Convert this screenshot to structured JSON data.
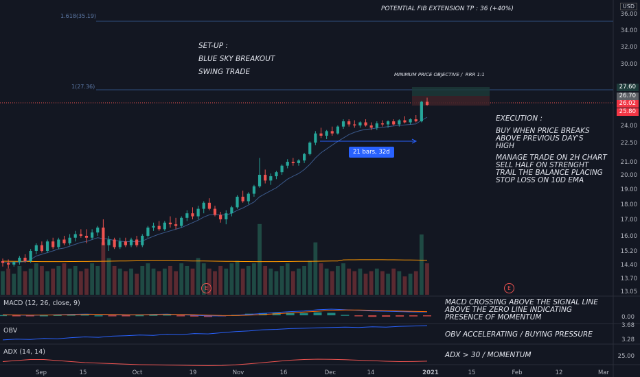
{
  "annotations": {
    "fib_target": "POTENTIAL FIB EXTENSION TP : 36 (+40%)",
    "setup_title": "SET-UP :",
    "setup_type": "BLUE SKY BREAKOUT",
    "setup_style": "SWING TRADE",
    "min_objective": "MINIMUM PRICE OBJECTIVE /  RRR 1:1",
    "execution_title": "EXECUTION :",
    "execution_buy": "BUY WHEN PRICE BREAKS\nABOVE PREVIOUS DAY'S\nHIGH",
    "execution_manage": "MANAGE TRADE ON 2H CHART\nSELL HALF ON STRENGHT\nTRAIL THE BALANCE PLACING\nSTOP LOSS ON 10D EMA",
    "macd_note": "MACD CROSSING ABOVE THE SIGNAL LINE\nABOVE THE ZERO LINE INDICATING\nPRESENCE OF MOMENTUM",
    "obv_note": "OBV ACCELERATING / BUYING PRESSURE",
    "adx_note": "ADX > 30 / MOMENTUM",
    "measure_label": "21 bars, 32d",
    "fib_1618": "1.618(35.19)",
    "fib_1": "1(27.36)",
    "earnings_marker": "E",
    "currency": "USD"
  },
  "panes": {
    "macd_label": "MACD (12, 26, close, 9)",
    "obv_label": "OBV",
    "adx_label": "ADX (14, 14)",
    "macd_axis": "0.00",
    "obv_axis": [
      "3.68",
      "3.28"
    ],
    "adx_axis": "25.00"
  },
  "price_badges": [
    {
      "text": "27.60",
      "color": "#1d3b3a"
    },
    {
      "text": "26.70",
      "color": "#5d6066"
    },
    {
      "text": "26.02",
      "color": "#f23645"
    },
    {
      "text": "25.80",
      "color": "#f23645"
    }
  ],
  "colors": {
    "up": "#26a69a",
    "down": "#ef5350",
    "ema": "#2962ff",
    "vol_ma": "#ff9800",
    "fib": "#2f4f7f"
  },
  "chart_data": {
    "type": "candlestick",
    "y_ticks": [
      "36.00",
      "34.00",
      "32.00",
      "30.00",
      "27.60",
      "26.70",
      "26.02",
      "25.80",
      "24.00",
      "22.50",
      "21.00",
      "20.00",
      "19.00",
      "18.00",
      "17.00",
      "16.00",
      "15.20",
      "14.40",
      "13.70",
      "13.05"
    ],
    "x_ticks": [
      "Sep",
      "15",
      "Oct",
      "19",
      "Nov",
      "16",
      "Dec",
      "14",
      "2021",
      "15",
      "Feb",
      "12",
      "Mar"
    ],
    "candles": [
      [
        14.6,
        14.75,
        14.3,
        14.5
      ],
      [
        14.5,
        14.7,
        14.2,
        14.4
      ],
      [
        14.4,
        14.6,
        14.3,
        14.55
      ],
      [
        14.55,
        14.9,
        14.4,
        14.8
      ],
      [
        14.8,
        15.0,
        14.5,
        14.6
      ],
      [
        14.6,
        15.3,
        14.5,
        15.2
      ],
      [
        15.2,
        15.6,
        15.0,
        15.5
      ],
      [
        15.5,
        15.7,
        15.1,
        15.2
      ],
      [
        15.2,
        15.8,
        15.1,
        15.7
      ],
      [
        15.7,
        15.9,
        15.3,
        15.4
      ],
      [
        15.4,
        15.9,
        15.3,
        15.8
      ],
      [
        15.8,
        16.0,
        15.5,
        15.6
      ],
      [
        15.6,
        16.1,
        15.5,
        15.9
      ],
      [
        15.9,
        16.3,
        15.7,
        16.1
      ],
      [
        16.1,
        16.4,
        15.9,
        16.0
      ],
      [
        16.0,
        16.4,
        15.6,
        15.9
      ],
      [
        15.9,
        16.4,
        15.8,
        16.2
      ],
      [
        16.2,
        16.6,
        16.0,
        16.5
      ],
      [
        16.5,
        17.0,
        15.6,
        15.5
      ],
      [
        15.5,
        16.0,
        15.2,
        15.8
      ],
      [
        15.8,
        15.9,
        15.3,
        15.4
      ],
      [
        15.4,
        15.9,
        15.3,
        15.7
      ],
      [
        15.7,
        15.9,
        15.4,
        15.5
      ],
      [
        15.5,
        15.9,
        15.4,
        15.8
      ],
      [
        15.8,
        16.0,
        15.4,
        15.5
      ],
      [
        15.5,
        16.1,
        15.4,
        16.0
      ],
      [
        16.0,
        16.6,
        15.9,
        16.5
      ],
      [
        16.5,
        16.8,
        16.3,
        16.6
      ],
      [
        16.6,
        16.9,
        16.3,
        16.4
      ],
      [
        16.4,
        16.9,
        16.3,
        16.8
      ],
      [
        16.8,
        17.2,
        16.5,
        16.7
      ],
      [
        16.7,
        17.1,
        16.4,
        16.6
      ],
      [
        16.6,
        17.2,
        16.5,
        17.1
      ],
      [
        17.1,
        17.6,
        16.9,
        17.4
      ],
      [
        17.4,
        17.8,
        17.0,
        17.2
      ],
      [
        17.2,
        17.9,
        17.0,
        17.7
      ],
      [
        17.7,
        18.2,
        17.4,
        18.1
      ],
      [
        18.1,
        18.4,
        17.6,
        17.7
      ],
      [
        17.7,
        17.9,
        17.2,
        17.3
      ],
      [
        17.3,
        17.5,
        16.8,
        17.0
      ],
      [
        17.0,
        17.6,
        16.7,
        17.4
      ],
      [
        17.4,
        17.9,
        17.2,
        17.8
      ],
      [
        17.8,
        18.6,
        17.7,
        18.5
      ],
      [
        18.5,
        18.9,
        18.1,
        18.2
      ],
      [
        18.2,
        18.8,
        18.0,
        18.7
      ],
      [
        18.7,
        19.3,
        18.5,
        19.2
      ],
      [
        19.2,
        21.3,
        19.1,
        20.0
      ],
      [
        20.0,
        20.4,
        19.4,
        19.6
      ],
      [
        19.6,
        20.1,
        19.3,
        19.9
      ],
      [
        19.9,
        20.3,
        19.7,
        20.2
      ],
      [
        20.2,
        20.8,
        20.0,
        20.7
      ],
      [
        20.7,
        21.2,
        20.5,
        21.0
      ],
      [
        21.0,
        21.3,
        20.7,
        20.9
      ],
      [
        20.9,
        21.2,
        20.7,
        21.1
      ],
      [
        21.1,
        21.7,
        20.9,
        21.6
      ],
      [
        21.6,
        22.6,
        21.5,
        22.5
      ],
      [
        22.5,
        23.5,
        22.3,
        23.3
      ],
      [
        23.3,
        23.8,
        22.9,
        23.1
      ],
      [
        23.1,
        23.6,
        22.8,
        23.5
      ],
      [
        23.5,
        23.9,
        23.1,
        23.3
      ],
      [
        23.3,
        24.0,
        23.2,
        23.9
      ],
      [
        23.9,
        24.6,
        23.7,
        24.4
      ],
      [
        24.4,
        24.6,
        23.9,
        24.1
      ],
      [
        24.1,
        24.5,
        23.8,
        24.0
      ],
      [
        24.0,
        24.4,
        23.8,
        24.3
      ],
      [
        24.3,
        24.6,
        23.9,
        24.0
      ],
      [
        24.0,
        24.3,
        23.6,
        23.8
      ],
      [
        23.8,
        24.4,
        23.6,
        24.2
      ],
      [
        24.2,
        24.5,
        23.9,
        24.1
      ],
      [
        24.1,
        24.5,
        23.8,
        24.4
      ],
      [
        24.4,
        24.6,
        24.0,
        24.1
      ],
      [
        24.1,
        24.6,
        23.9,
        24.5
      ],
      [
        24.5,
        24.9,
        24.2,
        24.3
      ],
      [
        24.3,
        24.7,
        24.1,
        24.6
      ],
      [
        24.6,
        25.0,
        24.3,
        24.4
      ],
      [
        24.4,
        26.4,
        24.3,
        26.3
      ],
      [
        26.3,
        26.7,
        25.9,
        26.0
      ]
    ],
    "volume_up": [
      true,
      false,
      true,
      true,
      false,
      true,
      true,
      false,
      true,
      false,
      true,
      false,
      true,
      true,
      false,
      false,
      true,
      true,
      false,
      true,
      false,
      true,
      false,
      true,
      false,
      true,
      true,
      true,
      false,
      true,
      false,
      false,
      true,
      true,
      false,
      true,
      true,
      false,
      false,
      false,
      true,
      true,
      true,
      false,
      true,
      true,
      true,
      false,
      true,
      true,
      true,
      true,
      false,
      true,
      true,
      true,
      true,
      false,
      true,
      false,
      true,
      true,
      false,
      false,
      true,
      false,
      false,
      true,
      false,
      true,
      false,
      true,
      false,
      true,
      false,
      true,
      false
    ],
    "volume": [
      0.45,
      0.5,
      0.4,
      0.55,
      0.45,
      0.5,
      0.6,
      0.55,
      0.45,
      0.5,
      0.55,
      0.6,
      0.5,
      0.55,
      0.45,
      0.5,
      0.6,
      0.55,
      1.0,
      0.7,
      0.55,
      0.5,
      0.45,
      0.5,
      0.4,
      0.55,
      0.6,
      0.5,
      0.45,
      0.5,
      0.55,
      0.45,
      0.6,
      0.55,
      0.5,
      0.7,
      0.6,
      0.5,
      0.45,
      0.55,
      0.5,
      0.6,
      0.65,
      0.5,
      0.55,
      0.6,
      1.35,
      0.55,
      0.5,
      0.45,
      0.55,
      0.6,
      0.45,
      0.5,
      0.55,
      0.65,
      1.0,
      0.6,
      0.5,
      0.45,
      0.55,
      0.6,
      0.5,
      0.45,
      0.5,
      0.4,
      0.45,
      0.5,
      0.45,
      0.4,
      0.5,
      0.45,
      0.35,
      0.4,
      0.45,
      1.15,
      0.6
    ],
    "ema": [
      14.5,
      14.5,
      14.5,
      14.55,
      14.57,
      14.7,
      14.9,
      15.0,
      15.1,
      15.2,
      15.3,
      15.35,
      15.45,
      15.55,
      15.65,
      15.7,
      15.8,
      15.9,
      15.85,
      15.82,
      15.75,
      15.72,
      15.68,
      15.7,
      15.68,
      15.72,
      15.85,
      15.98,
      16.1,
      16.2,
      16.3,
      16.4,
      16.5,
      16.65,
      16.8,
      16.95,
      17.15,
      17.3,
      17.32,
      17.28,
      17.3,
      17.4,
      17.6,
      17.75,
      17.95,
      18.15,
      18.5,
      18.7,
      18.9,
      19.1,
      19.4,
      19.7,
      19.9,
      20.1,
      20.4,
      20.8,
      21.3,
      21.7,
      22.0,
      22.3,
      22.6,
      22.9,
      23.2,
      23.4,
      23.55,
      23.65,
      23.7,
      23.78,
      23.84,
      23.9,
      23.95,
      24.0,
      24.05,
      24.1,
      24.15,
      24.5,
      24.8
    ],
    "macd_line": [
      0.1,
      0.05,
      0.0,
      0.05,
      0.1,
      0.15,
      0.2,
      0.15,
      0.1,
      0.05,
      0.1,
      0.15,
      0.2,
      0.1,
      0.0,
      -0.1,
      -0.1,
      0.0,
      0.15,
      0.3,
      0.45,
      0.6,
      0.7,
      0.9,
      1.0,
      0.9,
      0.8,
      0.7,
      0.65,
      0.6,
      0.55,
      0.55
    ],
    "signal_line": [
      0.08,
      0.07,
      0.05,
      0.05,
      0.07,
      0.1,
      0.14,
      0.15,
      0.13,
      0.1,
      0.09,
      0.11,
      0.14,
      0.13,
      0.1,
      0.03,
      -0.03,
      -0.04,
      0.02,
      0.12,
      0.25,
      0.38,
      0.52,
      0.66,
      0.8,
      0.86,
      0.86,
      0.82,
      0.76,
      0.7,
      0.64,
      0.6
    ],
    "obv": [
      3.3,
      3.32,
      3.31,
      3.34,
      3.33,
      3.36,
      3.38,
      3.37,
      3.4,
      3.41,
      3.43,
      3.42,
      3.45,
      3.44,
      3.47,
      3.46,
      3.49,
      3.52,
      3.54,
      3.57,
      3.58,
      3.6,
      3.61,
      3.62,
      3.63,
      3.64,
      3.63,
      3.65,
      3.64,
      3.66,
      3.67,
      3.68
    ],
    "adx": [
      27,
      28,
      29,
      29,
      28,
      27,
      26,
      25.5,
      25,
      24.5,
      24,
      23.8,
      23.6,
      23.4,
      23.2,
      23,
      23.2,
      23.8,
      24.8,
      26,
      27.2,
      28.3,
      29,
      29.3,
      29.2,
      28.8,
      28.3,
      27.8,
      27.3,
      27,
      27.1,
      27.4
    ]
  }
}
